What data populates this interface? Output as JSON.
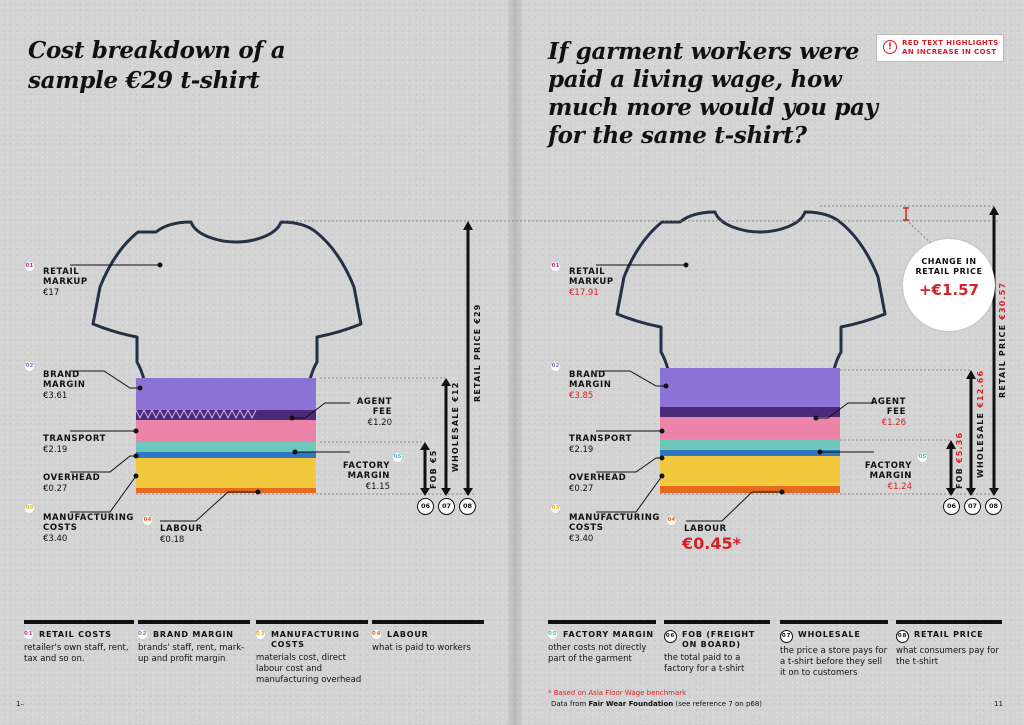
{
  "titles": {
    "left": "Cost breakdown of a sample €29 t-shirt",
    "right": "If garment workers were paid a living wage, how much more would you pay for the same t-shirt?"
  },
  "notice": {
    "icon": "!",
    "text": "RED TEXT HIGHLIGHTS AN INCREASE IN COST"
  },
  "left": {
    "retail_markup": {
      "num": "01",
      "label": "RETAIL MARKUP",
      "value": "€17"
    },
    "brand_margin": {
      "num": "02",
      "label": "BRAND MARGIN",
      "value": "€3.61"
    },
    "transport": {
      "label": "TRANSPORT",
      "value": "€2.19"
    },
    "overhead": {
      "label": "OVERHEAD",
      "value": "€0.27"
    },
    "manufacturing": {
      "num": "03",
      "label": "MANUFACTURING COSTS",
      "value": "€3.40"
    },
    "labour": {
      "num": "04",
      "label": "LABOUR",
      "value": "€0.18"
    },
    "agent_fee": {
      "label": "AGENT FEE",
      "value": "€1.20"
    },
    "factory_margin": {
      "num": "05",
      "label": "FACTORY MARGIN",
      "value": "€1.15"
    },
    "fob": "FOB €5",
    "wholesale": "WHOLESALE €12",
    "retail_price": "RETAIL PRICE €29",
    "circles": [
      "06",
      "07",
      "08"
    ]
  },
  "right": {
    "retail_markup": {
      "num": "01",
      "label": "RETAIL MARKUP",
      "value": "€17.91"
    },
    "brand_margin": {
      "num": "02",
      "label": "BRAND MARGIN",
      "value": "€3.85"
    },
    "transport": {
      "label": "TRANSPORT",
      "value": "€2.19"
    },
    "overhead": {
      "label": "OVERHEAD",
      "value": "€0.27"
    },
    "manufacturing": {
      "num": "03",
      "label": "MANUFACTURING COSTS",
      "value": "€3.40"
    },
    "labour": {
      "num": "04",
      "label": "LABOUR",
      "value": "€0.45*"
    },
    "agent_fee": {
      "label": "AGENT FEE",
      "value": "€1.26"
    },
    "factory_margin": {
      "num": "05",
      "label": "FACTORY MARGIN",
      "value": "€1.24"
    },
    "fob_label": "FOB",
    "fob_value": "€5.36",
    "wholesale_label": "WHOLESALE",
    "wholesale_value": "€12.66",
    "retail_label": "RETAIL PRICE",
    "retail_value": "€30.57",
    "change": {
      "label": "CHANGE IN RETAIL PRICE",
      "value": "+€1.57"
    },
    "circles": [
      "06",
      "07",
      "08"
    ]
  },
  "legend": [
    {
      "num": "01",
      "title": "RETAIL COSTS",
      "desc": "retailer's own staff, rent, tax and so on."
    },
    {
      "num": "02",
      "title": "BRAND MARGIN",
      "desc": "brands' staff, rent, mark-up and profit margin"
    },
    {
      "num": "03",
      "title": "MANUFACTURING COSTS",
      "desc": "materials cost, direct labour cost and manufacturing overhead"
    },
    {
      "num": "04",
      "title": "LABOUR",
      "desc": "what is paid to workers"
    },
    {
      "num": "05",
      "title": "FACTORY MARGIN",
      "desc": "other costs not directly part of the garment"
    },
    {
      "num": "06",
      "title": "FOB (FREIGHT ON BOARD)",
      "desc": "the total paid to a factory for a t-shirt"
    },
    {
      "num": "07",
      "title": "WHOLESALE",
      "desc": "the price a store pays for a t-shirt before they sell it on to customers"
    },
    {
      "num": "08",
      "title": "RETAIL PRICE",
      "desc": "what consumers pay for the t-shirt"
    }
  ],
  "footer": {
    "note": "* Based on Asia Floor Wage benchmark",
    "source_prefix": "Data from ",
    "source_bold": "Fair Wear Foundation",
    "source_suffix": " (see reference 7 on p68)",
    "page_left": "1–",
    "page_right": "11"
  },
  "colors": {
    "red": "#d61f26",
    "purple": "#8c72d4",
    "pink": "#ec84aa",
    "teal": "#6fc6ba",
    "yellow": "#f2c93c",
    "blue": "#2d77c4",
    "num01": "#c2318a",
    "num02": "#8a78c8",
    "num03": "#e8b12a",
    "num04": "#e46a1f",
    "num05": "#4fb8b0"
  }
}
